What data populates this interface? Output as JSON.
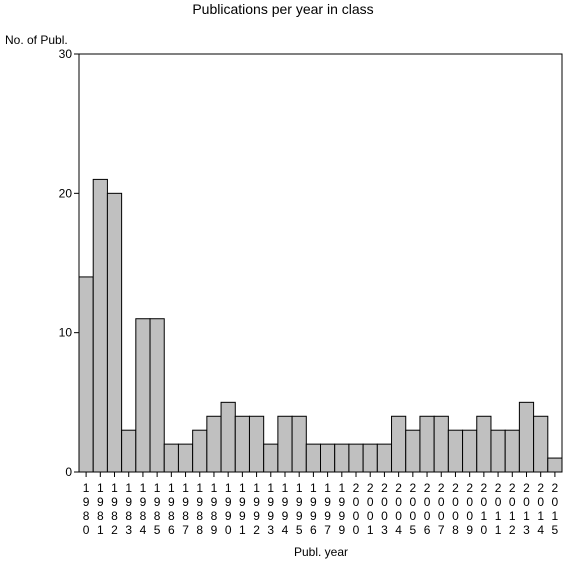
{
  "chart_data": {
    "type": "bar",
    "title": "Publications per year in class",
    "ylabel": "No. of Publ.",
    "xlabel": "Publ. year",
    "ylim": [
      0,
      30
    ],
    "yticks": [
      0,
      10,
      20,
      30
    ],
    "grid": false,
    "bar_color": "#c0c0c0",
    "categories": [
      "1980",
      "1981",
      "1982",
      "1983",
      "1984",
      "1985",
      "1986",
      "1987",
      "1988",
      "1989",
      "1990",
      "1991",
      "1992",
      "1993",
      "1994",
      "1995",
      "1996",
      "1997",
      "1999",
      "2000",
      "2001",
      "2003",
      "2004",
      "2005",
      "2006",
      "2007",
      "2008",
      "2009",
      "2010",
      "2011",
      "2012",
      "2013",
      "2014",
      "2015"
    ],
    "values": [
      14,
      21,
      20,
      3,
      11,
      11,
      2,
      2,
      3,
      4,
      5,
      4,
      4,
      2,
      4,
      4,
      2,
      2,
      2,
      2,
      2,
      2,
      4,
      3,
      4,
      4,
      3,
      3,
      4,
      3,
      3,
      5,
      4,
      1
    ]
  }
}
